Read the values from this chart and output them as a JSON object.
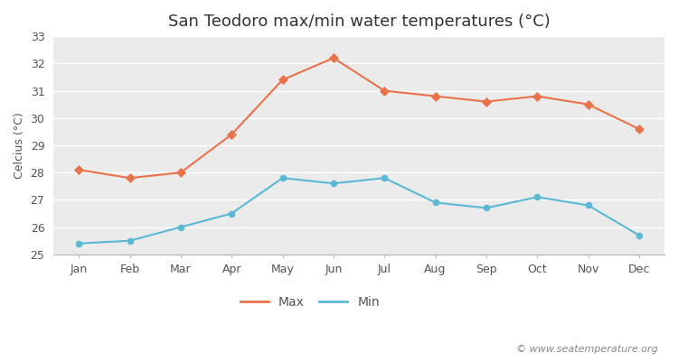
{
  "title": "San Teodoro max/min water temperatures (°C)",
  "ylabel": "Celcius (°C)",
  "months": [
    "Jan",
    "Feb",
    "Mar",
    "Apr",
    "May",
    "Jun",
    "Jul",
    "Aug",
    "Sep",
    "Oct",
    "Nov",
    "Dec"
  ],
  "max_temps": [
    28.1,
    27.8,
    28.0,
    29.4,
    31.4,
    32.2,
    31.0,
    30.8,
    30.6,
    30.8,
    30.5,
    29.6
  ],
  "min_temps": [
    25.4,
    25.5,
    26.0,
    26.5,
    27.8,
    27.6,
    27.8,
    26.9,
    26.7,
    27.1,
    26.8,
    25.7
  ],
  "max_color": "#e8734a",
  "min_color": "#5bb8d4",
  "fig_bg_color": "#ffffff",
  "plot_bg_color": "#ebebeb",
  "grid_color": "#ffffff",
  "spine_color": "#bbbbbb",
  "tick_color": "#555555",
  "ylim": [
    25,
    33
  ],
  "yticks": [
    25,
    26,
    27,
    28,
    29,
    30,
    31,
    32,
    33
  ],
  "legend_labels": [
    "Max",
    "Min"
  ],
  "watermark": "© www.seatemperature.org",
  "title_fontsize": 13,
  "axis_label_fontsize": 9,
  "tick_fontsize": 9,
  "legend_fontsize": 10,
  "watermark_fontsize": 8
}
